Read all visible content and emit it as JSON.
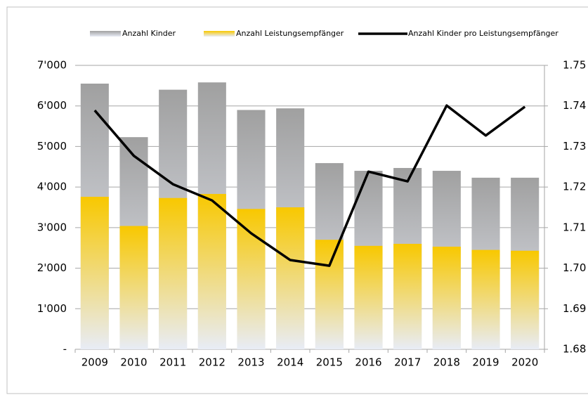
{
  "chart_data": {
    "type": "bar_line",
    "categories": [
      "2009",
      "2010",
      "2011",
      "2012",
      "2013",
      "2014",
      "2015",
      "2016",
      "2017",
      "2018",
      "2019",
      "2020"
    ],
    "series": [
      {
        "name": "Anzahl Kinder",
        "type": "bar",
        "color": "#a0a0a0",
        "values": [
          6550,
          5230,
          6400,
          6580,
          5900,
          5940,
          4590,
          4400,
          4470,
          4400,
          4230,
          4230
        ]
      },
      {
        "name": "Anzahl Leistungsempfänger",
        "type": "bar",
        "color": "#f8c800",
        "values": [
          3760,
          3040,
          3730,
          3830,
          3460,
          3500,
          2700,
          2550,
          2600,
          2530,
          2450,
          2430
        ]
      },
      {
        "name": "Anzahl Kinder pro Leistungsempfänger",
        "type": "line",
        "axis": "y2",
        "color": "#000000",
        "values": [
          1.7389,
          1.7277,
          1.7207,
          1.7167,
          1.7086,
          1.702,
          1.7006,
          1.7238,
          1.7214,
          1.7401,
          1.7327,
          1.7398
        ]
      }
    ],
    "ylim": [
      0,
      7000
    ],
    "yticks": [
      {
        "value": 0,
        "label": "-"
      },
      {
        "value": 1000,
        "label": "1'000"
      },
      {
        "value": 2000,
        "label": "2'000"
      },
      {
        "value": 3000,
        "label": "3'000"
      },
      {
        "value": 4000,
        "label": "4'000"
      },
      {
        "value": 5000,
        "label": "5'000"
      },
      {
        "value": 6000,
        "label": "6'000"
      },
      {
        "value": 7000,
        "label": "7'000"
      }
    ],
    "y2lim": [
      1.68,
      1.75
    ],
    "y2ticks": [
      {
        "value": 1.68,
        "label": "1.68"
      },
      {
        "value": 1.69,
        "label": "1.69"
      },
      {
        "value": 1.7,
        "label": "1.70"
      },
      {
        "value": 1.71,
        "label": "1.71"
      },
      {
        "value": 1.72,
        "label": "1.72"
      },
      {
        "value": 1.73,
        "label": "1.73"
      },
      {
        "value": 1.74,
        "label": "1.74"
      },
      {
        "value": 1.75,
        "label": "1.75"
      }
    ],
    "grid": true,
    "legend": "top"
  }
}
